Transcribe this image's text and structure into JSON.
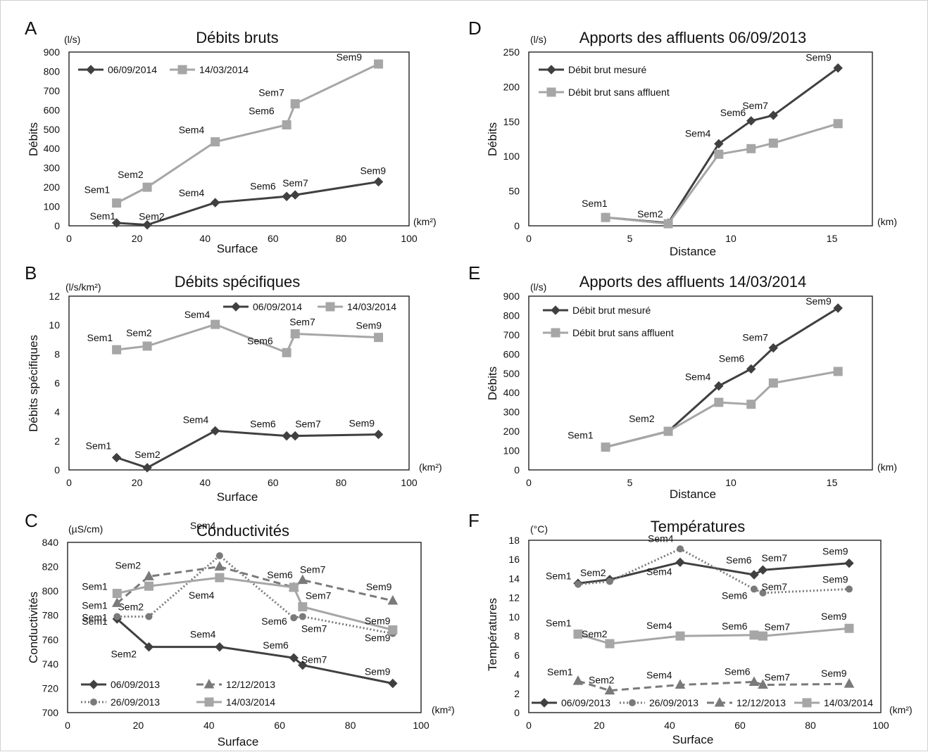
{
  "chart_data": [
    {
      "panel": "A",
      "type": "line",
      "title": "Débits bruts",
      "ylabel": "Débits",
      "xlabel": "Surface",
      "yunit": "(l/s)",
      "xunit": "(km²)",
      "xlim": [
        0,
        100
      ],
      "ylim": [
        0,
        900
      ],
      "xticks": [
        0,
        20,
        40,
        60,
        80,
        100
      ],
      "yticks": [
        0,
        100,
        200,
        300,
        400,
        500,
        600,
        700,
        800,
        900
      ],
      "legend_position": "top-left",
      "series": [
        {
          "name": "06/09/2014",
          "color": "#404040",
          "dash": "solid",
          "marker": "diamond",
          "x": [
            14,
            23,
            43,
            64,
            66.5,
            91
          ],
          "y": [
            15,
            5,
            120,
            152,
            160,
            228
          ],
          "labels": [
            "Sem1",
            "Sem2",
            "Sem4",
            "Sem6",
            "Sem7",
            "Sem9"
          ]
        },
        {
          "name": "14/03/2014",
          "color": "#a6a6a6",
          "dash": "solid",
          "marker": "square",
          "x": [
            14,
            23,
            43,
            64,
            66.5,
            91
          ],
          "y": [
            118,
            200,
            435,
            523,
            632,
            838
          ],
          "labels": [
            "Sem1",
            "Sem2",
            "Sem4",
            "Sem6",
            "Sem7",
            "Sem9"
          ]
        }
      ]
    },
    {
      "panel": "B",
      "type": "line",
      "title": "Débits spécifiques",
      "ylabel": "Débits spécifiques",
      "xlabel": "Surface",
      "yunit": "(l/s/km²)",
      "xunit": "(km²)",
      "xlim": [
        0,
        100
      ],
      "ylim": [
        0,
        12
      ],
      "xticks": [
        0,
        20,
        40,
        60,
        80,
        100
      ],
      "yticks": [
        0,
        2,
        4,
        6,
        8,
        10,
        12
      ],
      "legend_position": "top-right",
      "series": [
        {
          "name": "06/09/2014",
          "color": "#404040",
          "dash": "solid",
          "marker": "diamond",
          "x": [
            14,
            23,
            43,
            64,
            66.5,
            91
          ],
          "y": [
            0.85,
            0.15,
            2.7,
            2.35,
            2.35,
            2.45
          ],
          "labels": [
            "Sem1",
            "Sem2",
            "Sem4",
            "Sem6",
            "Sem7",
            "Sem9"
          ]
        },
        {
          "name": "14/03/2014",
          "color": "#a6a6a6",
          "dash": "solid",
          "marker": "square",
          "x": [
            14,
            23,
            43,
            64,
            66.5,
            91
          ],
          "y": [
            8.3,
            8.55,
            10.05,
            8.1,
            9.4,
            9.15
          ],
          "labels": [
            "Sem1",
            "Sem2",
            "Sem4",
            "Sem6",
            "Sem7",
            "Sem9"
          ]
        }
      ]
    },
    {
      "panel": "C",
      "type": "line",
      "title": "Conductivités",
      "ylabel": "Conductivités",
      "xlabel": "Surface",
      "yunit": "(µS/cm)",
      "xunit": "(km²)",
      "xlim": [
        0,
        100
      ],
      "ylim": [
        700,
        840
      ],
      "xticks": [
        0,
        20,
        40,
        60,
        80,
        100
      ],
      "yticks": [
        700,
        720,
        740,
        760,
        780,
        800,
        820,
        840
      ],
      "legend_position": "bottom-left",
      "series": [
        {
          "name": "06/09/2013",
          "color": "#404040",
          "dash": "solid",
          "marker": "diamond",
          "x": [
            14,
            23,
            43,
            64,
            66.5,
            92
          ],
          "y": [
            777,
            754,
            754,
            745,
            739,
            724
          ],
          "labels": [
            "Sem1",
            "Sem2",
            "Sem4",
            "Sem6",
            "Sem7",
            "Sem9"
          ]
        },
        {
          "name": "26/09/2013",
          "color": "#7a7a7a",
          "dash": "dotted",
          "marker": "circle",
          "x": [
            14,
            23,
            43,
            64,
            66.5,
            92
          ],
          "y": [
            779,
            779,
            829,
            778,
            779,
            765
          ],
          "labels": [
            "Sem1",
            "Sem2",
            "Sem4",
            "Sem6",
            "Sem7",
            "Sem9"
          ]
        },
        {
          "name": "12/12/2013",
          "color": "#7a7a7a",
          "dash": "dashed",
          "marker": "triangle",
          "x": [
            14,
            23,
            43,
            64,
            66.5,
            92
          ],
          "y": [
            790,
            812,
            820,
            803,
            809,
            792
          ],
          "labels": [
            "Sem1",
            "Sem2",
            "Sem4",
            "Sem6",
            "Sem7",
            "Sem9"
          ]
        },
        {
          "name": "14/03/2014",
          "color": "#a6a6a6",
          "dash": "solid",
          "marker": "square",
          "x": [
            14,
            23,
            43,
            64,
            66.5,
            92
          ],
          "y": [
            798,
            804,
            811,
            803,
            787,
            768
          ],
          "labels": [
            "Sem1",
            "Sem2",
            "Sem4",
            "Sem6",
            "Sem7",
            "Sem9"
          ]
        }
      ]
    },
    {
      "panel": "D",
      "type": "line",
      "title": "Apports des affluents 06/09/2013",
      "ylabel": "Débits",
      "xlabel": "Distance",
      "yunit": "(l/s)",
      "xunit": "(km)",
      "xlim": [
        0,
        17
      ],
      "ylim": [
        0,
        250
      ],
      "xticks": [
        0,
        5,
        10,
        15
      ],
      "yticks": [
        0,
        50,
        100,
        150,
        200,
        250
      ],
      "legend_position": "top-left",
      "series": [
        {
          "name": "Débit brut mesuré",
          "color": "#404040",
          "dash": "solid",
          "marker": "diamond",
          "x": [
            3.8,
            6.9,
            9.4,
            11.0,
            12.1,
            15.3
          ],
          "y": [
            12,
            4,
            118,
            151,
            159,
            227
          ],
          "labels": [
            "Sem1",
            "Sem2",
            "Sem4",
            "Sem6",
            "Sem7",
            "Sem9"
          ]
        },
        {
          "name": "Débit brut sans affluent",
          "color": "#a6a6a6",
          "dash": "solid",
          "marker": "square",
          "x": [
            3.8,
            6.9,
            9.4,
            11.0,
            12.1,
            15.3
          ],
          "y": [
            12,
            3,
            103,
            111,
            119,
            147
          ],
          "labels": [
            "",
            "",
            "",
            "",
            "",
            ""
          ]
        }
      ]
    },
    {
      "panel": "E",
      "type": "line",
      "title": "Apports des affluents 14/03/2014",
      "ylabel": "Débits",
      "xlabel": "Distance",
      "yunit": "(l/s)",
      "xunit": "(km)",
      "xlim": [
        0,
        17
      ],
      "ylim": [
        0,
        900
      ],
      "xticks": [
        0,
        5,
        10,
        15
      ],
      "yticks": [
        0,
        100,
        200,
        300,
        400,
        500,
        600,
        700,
        800,
        900
      ],
      "legend_position": "top-left",
      "series": [
        {
          "name": "Débit brut mesuré",
          "color": "#404040",
          "dash": "solid",
          "marker": "diamond",
          "x": [
            3.8,
            6.9,
            9.4,
            11.0,
            12.1,
            15.3
          ],
          "y": [
            118,
            200,
            435,
            523,
            632,
            838
          ],
          "labels": [
            "Sem1",
            "Sem2",
            "Sem4",
            "Sem6",
            "Sem7",
            "Sem9"
          ]
        },
        {
          "name": "Débit brut sans affluent",
          "color": "#a6a6a6",
          "dash": "solid",
          "marker": "square",
          "x": [
            3.8,
            6.9,
            9.4,
            11.0,
            12.1,
            15.3
          ],
          "y": [
            118,
            200,
            350,
            340,
            450,
            510
          ],
          "labels": [
            "",
            "",
            "",
            "",
            "",
            ""
          ]
        }
      ]
    },
    {
      "panel": "F",
      "type": "line",
      "title": "Températures",
      "ylabel": "Températures",
      "xlabel": "Surface",
      "yunit": "(°C)",
      "xunit": "(km²)",
      "xlim": [
        0,
        100
      ],
      "ylim": [
        0,
        18
      ],
      "xticks": [
        0,
        20,
        40,
        60,
        80,
        100
      ],
      "yticks": [
        0,
        2,
        4,
        6,
        8,
        10,
        12,
        14,
        16,
        18
      ],
      "legend_position": "bottom",
      "series": [
        {
          "name": "06/09/2013",
          "color": "#404040",
          "dash": "solid",
          "marker": "diamond",
          "x": [
            14,
            23,
            43,
            64,
            66.5,
            91
          ],
          "y": [
            13.5,
            13.9,
            15.7,
            14.4,
            14.9,
            15.6
          ],
          "labels": [
            "Sem1",
            "Sem2",
            "Sem4",
            "Sem6",
            "Sem7",
            "Sem9"
          ]
        },
        {
          "name": "26/09/2013",
          "color": "#7a7a7a",
          "dash": "dotted",
          "marker": "circle",
          "x": [
            14,
            23,
            43,
            64,
            66.5,
            91
          ],
          "y": [
            13.4,
            13.7,
            17.1,
            12.9,
            12.5,
            12.9
          ],
          "labels": [
            "",
            "",
            "Sem4",
            "Sem6",
            "Sem7",
            "Sem9"
          ]
        },
        {
          "name": "12/12/2013",
          "color": "#7a7a7a",
          "dash": "dashed",
          "marker": "triangle",
          "x": [
            14,
            23,
            43,
            64,
            66.5,
            91
          ],
          "y": [
            3.3,
            2.3,
            2.9,
            3.2,
            2.9,
            3.0
          ],
          "labels": [
            "Sem1",
            "Sem2",
            "Sem4",
            "Sem6",
            "Sem7",
            "Sem9"
          ]
        },
        {
          "name": "14/03/2014",
          "color": "#a6a6a6",
          "dash": "solid",
          "marker": "square",
          "x": [
            14,
            23,
            43,
            64,
            66.5,
            91
          ],
          "y": [
            8.2,
            7.2,
            8.0,
            8.1,
            8.0,
            8.8
          ],
          "labels": [
            "Sem1",
            "Sem2",
            "Sem4",
            "Sem6",
            "Sem7",
            "Sem9"
          ]
        }
      ]
    }
  ]
}
